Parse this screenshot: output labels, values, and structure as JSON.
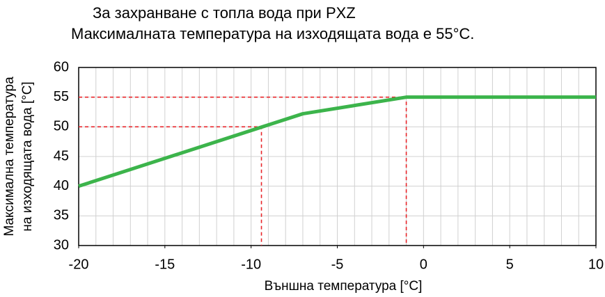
{
  "chart_data": {
    "type": "line",
    "title": "За захранване с топла вода при PXZ",
    "subtitle": "Максималната температура на изходящата вода е 55°C.",
    "xlabel": "Външна температура [°C]",
    "ylabel": [
      "Максимална температура",
      "на изходящата вода [°C]"
    ],
    "x": [
      -20,
      -7,
      -1,
      10
    ],
    "series": [
      {
        "name": "Максимална температура",
        "color": "#3cb44b",
        "values": [
          40,
          52.2,
          55,
          55
        ]
      }
    ],
    "xlim": [
      -20,
      10
    ],
    "xticks": [
      -20,
      -15,
      -10,
      -5,
      0,
      5,
      10
    ],
    "ylim": [
      30,
      60
    ],
    "yticks": [
      30,
      35,
      40,
      45,
      50,
      55,
      60
    ],
    "grid": true,
    "minor_grid_step": 1,
    "reference_lines": [
      {
        "x": -9.4,
        "y": 50,
        "color": "#e8252a"
      },
      {
        "x": -1,
        "y": 55,
        "color": "#e8252a"
      }
    ]
  }
}
